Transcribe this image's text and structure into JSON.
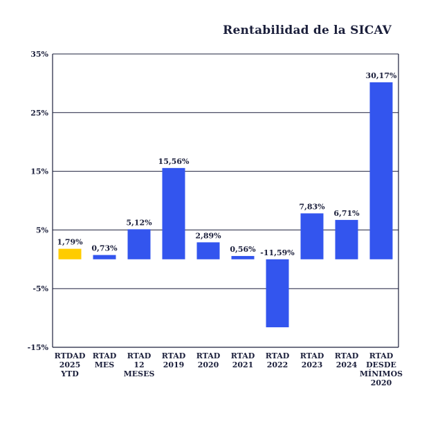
{
  "chart_data": {
    "type": "bar",
    "title": "Rentabilidad de la SICAV",
    "categories": [
      [
        "RTDAD",
        "2025",
        "YTD"
      ],
      [
        "RTAD",
        "MES"
      ],
      [
        "RTAD",
        "12",
        "MESES"
      ],
      [
        "RTAD",
        "2019"
      ],
      [
        "RTAD",
        "2020"
      ],
      [
        "RTAD",
        "2021"
      ],
      [
        "RTAD",
        "2022"
      ],
      [
        "RTAD",
        "2023"
      ],
      [
        "RTAD",
        "2024"
      ],
      [
        "RTAD",
        "DESDE",
        "MÍNIMOS",
        "2020"
      ]
    ],
    "values": [
      1.79,
      0.73,
      5.12,
      15.56,
      2.89,
      0.56,
      -11.59,
      7.83,
      6.71,
      30.17
    ],
    "value_labels": [
      "1,79%",
      "0,73%",
      "5,12%",
      "15,56%",
      "2,89%",
      "0,56%",
      "-11,59%",
      "7,83%",
      "6,71%",
      "30,17%"
    ],
    "ylim": [
      -15,
      35
    ],
    "yticks": [
      35,
      25,
      15,
      5,
      -5,
      -15
    ],
    "ytick_labels": [
      "35%",
      "25%",
      "15%",
      "5%",
      "-5%",
      "-15%"
    ],
    "colors": {
      "highlight": "#ffcc00",
      "bar": "#3355ee",
      "axis": "#1b1f3b"
    },
    "highlight_index": 0,
    "grid": true,
    "xlabel": "",
    "ylabel": ""
  }
}
